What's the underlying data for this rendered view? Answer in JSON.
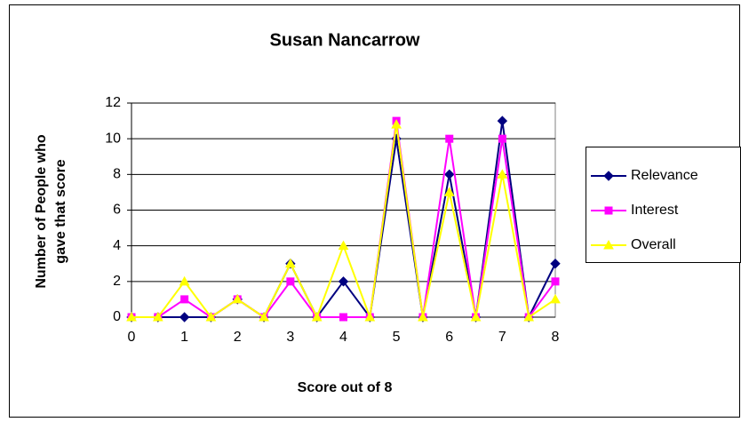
{
  "chart_data": {
    "type": "line",
    "title": "Susan Nancarrow",
    "x_label": "Score out of 8",
    "y_label": [
      "Number of People who",
      "gave that score"
    ],
    "categories": [
      "0",
      null,
      "1",
      null,
      "2",
      null,
      "3",
      null,
      "4",
      null,
      "5",
      null,
      "6",
      null,
      "7",
      null,
      "8"
    ],
    "series": [
      {
        "name": "Relevance",
        "color": "#000080",
        "marker": "diamond",
        "values": [
          0,
          0,
          0,
          0,
          1,
          0,
          3,
          0,
          2,
          0,
          10,
          0,
          8,
          0,
          11,
          0,
          3
        ]
      },
      {
        "name": "Interest",
        "color": "#ff00ff",
        "marker": "square",
        "values": [
          0,
          0,
          1,
          0,
          1,
          0,
          2,
          0,
          0,
          0,
          11,
          0,
          10,
          0,
          10,
          0,
          2
        ]
      },
      {
        "name": "Overall",
        "color": "#ffff00",
        "marker": "triangle",
        "values": [
          0,
          0,
          2,
          0,
          1,
          0,
          3,
          0,
          4,
          0,
          10.8,
          0,
          7,
          0,
          8,
          0,
          1
        ]
      }
    ],
    "ylim": [
      0,
      12
    ],
    "yticks": [
      0,
      2,
      4,
      6,
      8,
      10,
      12
    ],
    "grid": true,
    "legend": "right"
  }
}
